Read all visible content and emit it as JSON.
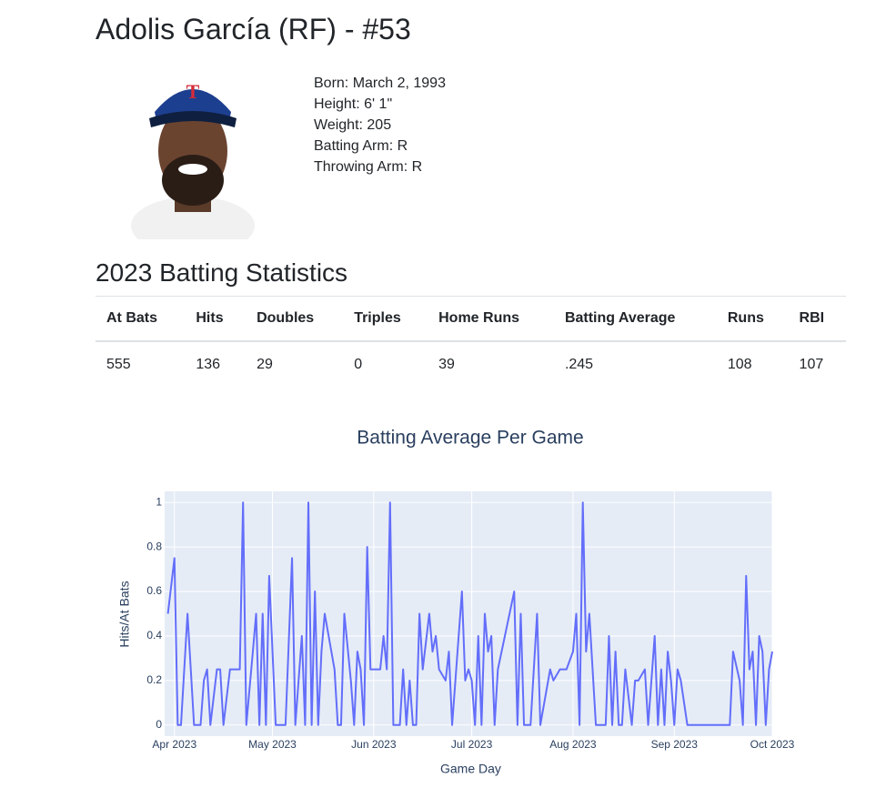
{
  "header": {
    "title": "Adolis García (RF) - #53"
  },
  "player": {
    "lines": [
      "Born: March 2, 1993",
      "Height: 6' 1\"",
      "Weight: 205",
      "Batting Arm: R",
      "Throwing Arm: R"
    ]
  },
  "stats": {
    "title": "2023 Batting Statistics",
    "headers": [
      "At Bats",
      "Hits",
      "Doubles",
      "Triples",
      "Home Runs",
      "Batting Average",
      "Runs",
      "RBI"
    ],
    "rows": [
      [
        "555",
        "136",
        "29",
        "0",
        "39",
        ".245",
        "108",
        "107"
      ]
    ]
  },
  "chart_data": {
    "type": "line",
    "title": "Batting Average Per Game",
    "x_label": "Game Day",
    "y_label": "Hits/At Bats",
    "color": "#636efa",
    "grid": true,
    "xlim": [
      "2023-03-29",
      "2023-10-01"
    ],
    "xticks": [
      {
        "value": "2023-04-01",
        "label": "Apr 2023"
      },
      {
        "value": "2023-05-01",
        "label": "May 2023"
      },
      {
        "value": "2023-06-01",
        "label": "Jun 2023"
      },
      {
        "value": "2023-07-01",
        "label": "Jul 2023"
      },
      {
        "value": "2023-08-01",
        "label": "Aug 2023"
      },
      {
        "value": "2023-09-01",
        "label": "Sep 2023"
      },
      {
        "value": "2023-10-01",
        "label": "Oct 2023"
      }
    ],
    "ylim": [
      -0.05,
      1.05
    ],
    "yticks": [
      0,
      0.2,
      0.4,
      0.6,
      0.8,
      1
    ],
    "x": [
      "2023-03-30",
      "2023-04-01",
      "2023-04-02",
      "2023-04-03",
      "2023-04-05",
      "2023-04-07",
      "2023-04-09",
      "2023-04-10",
      "2023-04-11",
      "2023-04-12",
      "2023-04-14",
      "2023-04-15",
      "2023-04-16",
      "2023-04-18",
      "2023-04-21",
      "2023-04-22",
      "2023-04-23",
      "2023-04-25",
      "2023-04-26",
      "2023-04-27",
      "2023-04-28",
      "2023-04-29",
      "2023-04-30",
      "2023-05-02",
      "2023-05-05",
      "2023-05-07",
      "2023-05-08",
      "2023-05-10",
      "2023-05-11",
      "2023-05-12",
      "2023-05-13",
      "2023-05-14",
      "2023-05-15",
      "2023-05-16",
      "2023-05-17",
      "2023-05-20",
      "2023-05-21",
      "2023-05-22",
      "2023-05-23",
      "2023-05-25",
      "2023-05-26",
      "2023-05-27",
      "2023-05-28",
      "2023-05-29",
      "2023-05-30",
      "2023-05-31",
      "2023-06-03",
      "2023-06-04",
      "2023-06-05",
      "2023-06-06",
      "2023-06-07",
      "2023-06-09",
      "2023-06-10",
      "2023-06-11",
      "2023-06-12",
      "2023-06-13",
      "2023-06-14",
      "2023-06-15",
      "2023-06-16",
      "2023-06-18",
      "2023-06-19",
      "2023-06-20",
      "2023-06-21",
      "2023-06-23",
      "2023-06-24",
      "2023-06-25",
      "2023-06-28",
      "2023-06-29",
      "2023-06-30",
      "2023-07-01",
      "2023-07-02",
      "2023-07-03",
      "2023-07-04",
      "2023-07-05",
      "2023-07-06",
      "2023-07-07",
      "2023-07-08",
      "2023-07-09",
      "2023-07-14",
      "2023-07-15",
      "2023-07-16",
      "2023-07-17",
      "2023-07-19",
      "2023-07-21",
      "2023-07-22",
      "2023-07-25",
      "2023-07-26",
      "2023-07-28",
      "2023-07-30",
      "2023-08-01",
      "2023-08-02",
      "2023-08-03",
      "2023-08-04",
      "2023-08-05",
      "2023-08-06",
      "2023-08-08",
      "2023-08-11",
      "2023-08-12",
      "2023-08-13",
      "2023-08-14",
      "2023-08-15",
      "2023-08-16",
      "2023-08-17",
      "2023-08-19",
      "2023-08-20",
      "2023-08-21",
      "2023-08-23",
      "2023-08-24",
      "2023-08-26",
      "2023-08-27",
      "2023-08-28",
      "2023-08-29",
      "2023-08-30",
      "2023-08-31",
      "2023-09-01",
      "2023-09-02",
      "2023-09-03",
      "2023-09-05",
      "2023-09-18",
      "2023-09-19",
      "2023-09-21",
      "2023-09-22",
      "2023-09-23",
      "2023-09-24",
      "2023-09-25",
      "2023-09-26",
      "2023-09-27",
      "2023-09-28",
      "2023-09-29",
      "2023-09-30",
      "2023-10-01"
    ],
    "values": [
      0.5,
      0.75,
      0,
      0,
      0.5,
      0,
      0,
      0.2,
      0.25,
      0,
      0.25,
      0.25,
      0,
      0.25,
      0.25,
      1,
      0,
      0.33,
      0.5,
      0,
      0.5,
      0,
      0.67,
      0,
      0,
      0.75,
      0,
      0.4,
      0,
      1,
      0,
      0.6,
      0,
      0.33,
      0.5,
      0.25,
      0,
      0,
      0.5,
      0.2,
      0,
      0.33,
      0.25,
      0,
      0.8,
      0.25,
      0.25,
      0.4,
      0.25,
      1,
      0,
      0,
      0.25,
      0,
      0.2,
      0,
      0,
      0.5,
      0.25,
      0.5,
      0.33,
      0.4,
      0.25,
      0.2,
      0.33,
      0,
      0.6,
      0.2,
      0.25,
      0.2,
      0,
      0.4,
      0,
      0.5,
      0.33,
      0.4,
      0,
      0.25,
      0.6,
      0,
      0.5,
      0,
      0,
      0.5,
      0,
      0.25,
      0.2,
      0.25,
      0.25,
      0.33,
      0.5,
      0,
      1,
      0.33,
      0.5,
      0,
      0,
      0.4,
      0,
      0.33,
      0,
      0,
      0.25,
      0,
      0.2,
      0.2,
      0.25,
      0,
      0.4,
      0,
      0.25,
      0,
      0.33,
      0.2,
      0,
      0.25,
      0.2,
      0,
      0,
      0.33,
      0.2,
      0,
      0.67,
      0.25,
      0.33,
      0,
      0.4,
      0.33,
      0,
      0.25,
      0.33
    ]
  }
}
